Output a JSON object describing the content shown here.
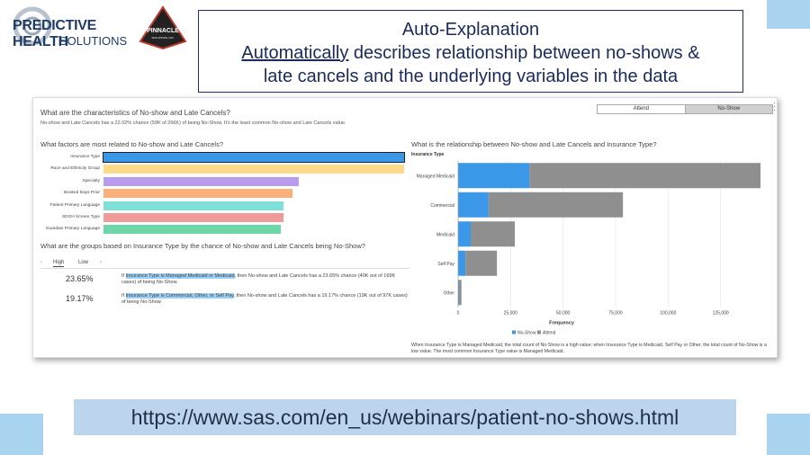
{
  "logos": {
    "phs_line1": "PREDICTIVE HEALTH",
    "phs_line2": "SOLUTIONS",
    "pinnacle": "PINNACLE",
    "pinnacle_sub": "SOLUTIONS, INC."
  },
  "title": {
    "line1": "Auto-Explanation",
    "line2_underlined": "Automatically",
    "line2_rest": " describes relationship between no-shows &",
    "line3": "late cancels and the underlying variables in the data"
  },
  "panel": {
    "question": "What are the characteristics of No-show and Late Cancels?",
    "description": "No-show and Late Cancels has a 22.02% chance (59K of 266K) of being No-Show. It's the least common No-show and Late Cancels value.",
    "toggle": [
      "Attend",
      "No-Show"
    ],
    "factors": {
      "question": "What factors are most related to No-show and Late Cancels?",
      "items": [
        {
          "label": "Insurance Type",
          "value": 1.0,
          "color": "#3b97e8"
        },
        {
          "label": "Race and Ethnicity Group",
          "value": 1.0,
          "color": "#fdd98a"
        },
        {
          "label": "Specialty",
          "value": 0.65,
          "color": "#b89cf0"
        },
        {
          "label": "Booked Days Prior",
          "value": 0.63,
          "color": "#f9b07a"
        },
        {
          "label": "Patient Primary Language",
          "value": 0.6,
          "color": "#7fe0d8"
        },
        {
          "label": "SDOH Screen Type",
          "value": 0.6,
          "color": "#f09a9a"
        },
        {
          "label": "Guardian Primary Language",
          "value": 0.59,
          "color": "#6ed6a8"
        }
      ]
    },
    "groups": {
      "question": "What are the groups based on Insurance Type by the chance of No-show and Late Cancels being No-Show?",
      "tabs": [
        "High",
        "Low"
      ],
      "rows": [
        {
          "pct": "23.65%",
          "pre": "If ",
          "hl": "Insurance Type is Managed Medicaid or Medicaid",
          "post": ", then No-show and Late Cancels has a 23.65% chance (40K out of 169K cases) of being No-Show."
        },
        {
          "pct": "19.17%",
          "pre": "If ",
          "hl": "Insurance Type is Commercial, Other, or Self Pay",
          "post": ", then No-show and Late Cancels has a 19.17% chance (19K out of 97K cases) of being No-Show."
        }
      ]
    },
    "relationship": {
      "question": "What is the relationship between No-show and Late Cancels and Insurance Type?",
      "summary": "When Insurance Type is Managed Medicaid, the total count of No-Show is a high value; when Insurance Type is Medicaid, Self Pay or Other, the total count of No-Show is a low value. The most common Insurance Type value is Managed Medicaid."
    }
  },
  "chart_data": {
    "type": "bar",
    "orientation": "horizontal",
    "stacked": true,
    "ylabel": "Insurance Type",
    "xlabel": "Frequency",
    "categories": [
      "Managed Medicaid",
      "Commercial",
      "Medicaid",
      "Self Pay",
      "Other"
    ],
    "series": [
      {
        "name": "No-Show",
        "color": "#3b97e8",
        "values": [
          34000,
          14500,
          6000,
          3500,
          400
        ]
      },
      {
        "name": "Attend",
        "color": "#8f8f8f",
        "values": [
          110000,
          64000,
          21000,
          15000,
          1200
        ]
      }
    ],
    "xlim": [
      0,
      150000
    ],
    "xticks": [
      0,
      25000,
      50000,
      75000,
      100000,
      125000
    ],
    "xtick_labels": [
      "0",
      "25,000",
      "50,000",
      "75,000",
      "100,000",
      "125,000"
    ],
    "grid": true,
    "legend": "bottom"
  },
  "footer": {
    "url": "https://www.sas.com/en_us/webinars/patient-no-shows.html"
  }
}
